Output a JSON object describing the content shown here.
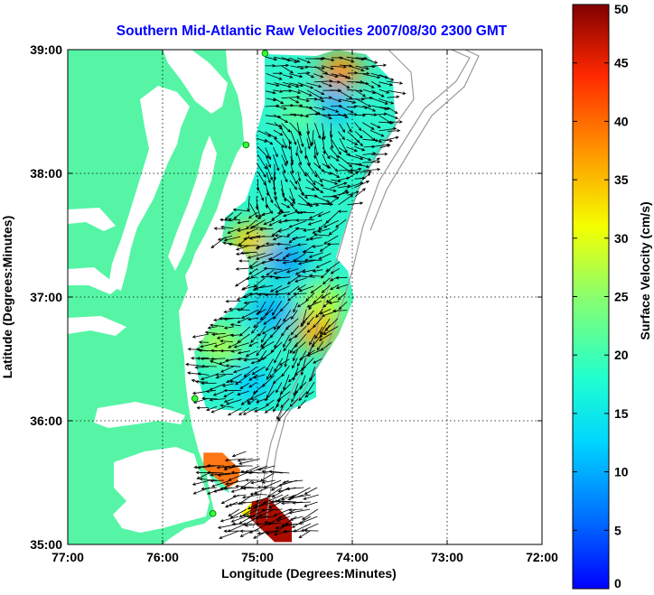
{
  "chart_data": {
    "type": "heatmap",
    "title": "Southern Mid-Atlantic Raw Velocities 2007/08/30 2300 GMT",
    "xlabel": "Longitude (Degrees:Minutes)",
    "ylabel": "Latitude (Degrees:Minutes)",
    "xlim": [
      -77,
      -72
    ],
    "ylim": [
      35,
      39
    ],
    "x_ticks": [
      {
        "value": -77,
        "label": "77:00"
      },
      {
        "value": -76,
        "label": "76:00"
      },
      {
        "value": -75,
        "label": "75:00"
      },
      {
        "value": -74,
        "label": "74:00"
      },
      {
        "value": -73,
        "label": "73:00"
      },
      {
        "value": -72,
        "label": "72:00"
      }
    ],
    "y_ticks": [
      {
        "value": 35,
        "label": "35:00"
      },
      {
        "value": 36,
        "label": "36:00"
      },
      {
        "value": 37,
        "label": "37:00"
      },
      {
        "value": 38,
        "label": "38:00"
      },
      {
        "value": 39,
        "label": "39:00"
      }
    ],
    "grid": true,
    "colorbar": {
      "label": "Surface Velocity (cm/s)",
      "range": [
        0,
        50
      ],
      "ticks": [
        "0",
        "5",
        "10",
        "15",
        "20",
        "25",
        "30",
        "35",
        "40",
        "45",
        "50"
      ],
      "colormap": "jet"
    },
    "land_color": "#55f5a5",
    "hotspots": [
      {
        "lon": -74.12,
        "lat": 38.83,
        "speed": 38
      },
      {
        "lon": -74.25,
        "lat": 38.55,
        "speed": 10
      },
      {
        "lon": -74.55,
        "lat": 38.5,
        "speed": 22
      },
      {
        "lon": -74.9,
        "lat": 38.1,
        "speed": 16
      },
      {
        "lon": -75.08,
        "lat": 37.45,
        "speed": 34
      },
      {
        "lon": -74.7,
        "lat": 37.3,
        "speed": 9
      },
      {
        "lon": -74.3,
        "lat": 36.95,
        "speed": 28
      },
      {
        "lon": -74.38,
        "lat": 36.72,
        "speed": 36
      },
      {
        "lon": -74.85,
        "lat": 36.88,
        "speed": 10
      },
      {
        "lon": -75.4,
        "lat": 36.62,
        "speed": 27
      },
      {
        "lon": -75.05,
        "lat": 36.3,
        "speed": 12
      },
      {
        "lon": -75.35,
        "lat": 35.72,
        "speed": 40
      },
      {
        "lon": -74.8,
        "lat": 35.26,
        "speed": 48
      }
    ],
    "stations": [
      {
        "lon": -74.92,
        "lat": 38.97
      },
      {
        "lon": -75.12,
        "lat": 38.23
      },
      {
        "lon": -75.66,
        "lat": 36.18
      },
      {
        "lon": -75.47,
        "lat": 35.25
      }
    ]
  }
}
